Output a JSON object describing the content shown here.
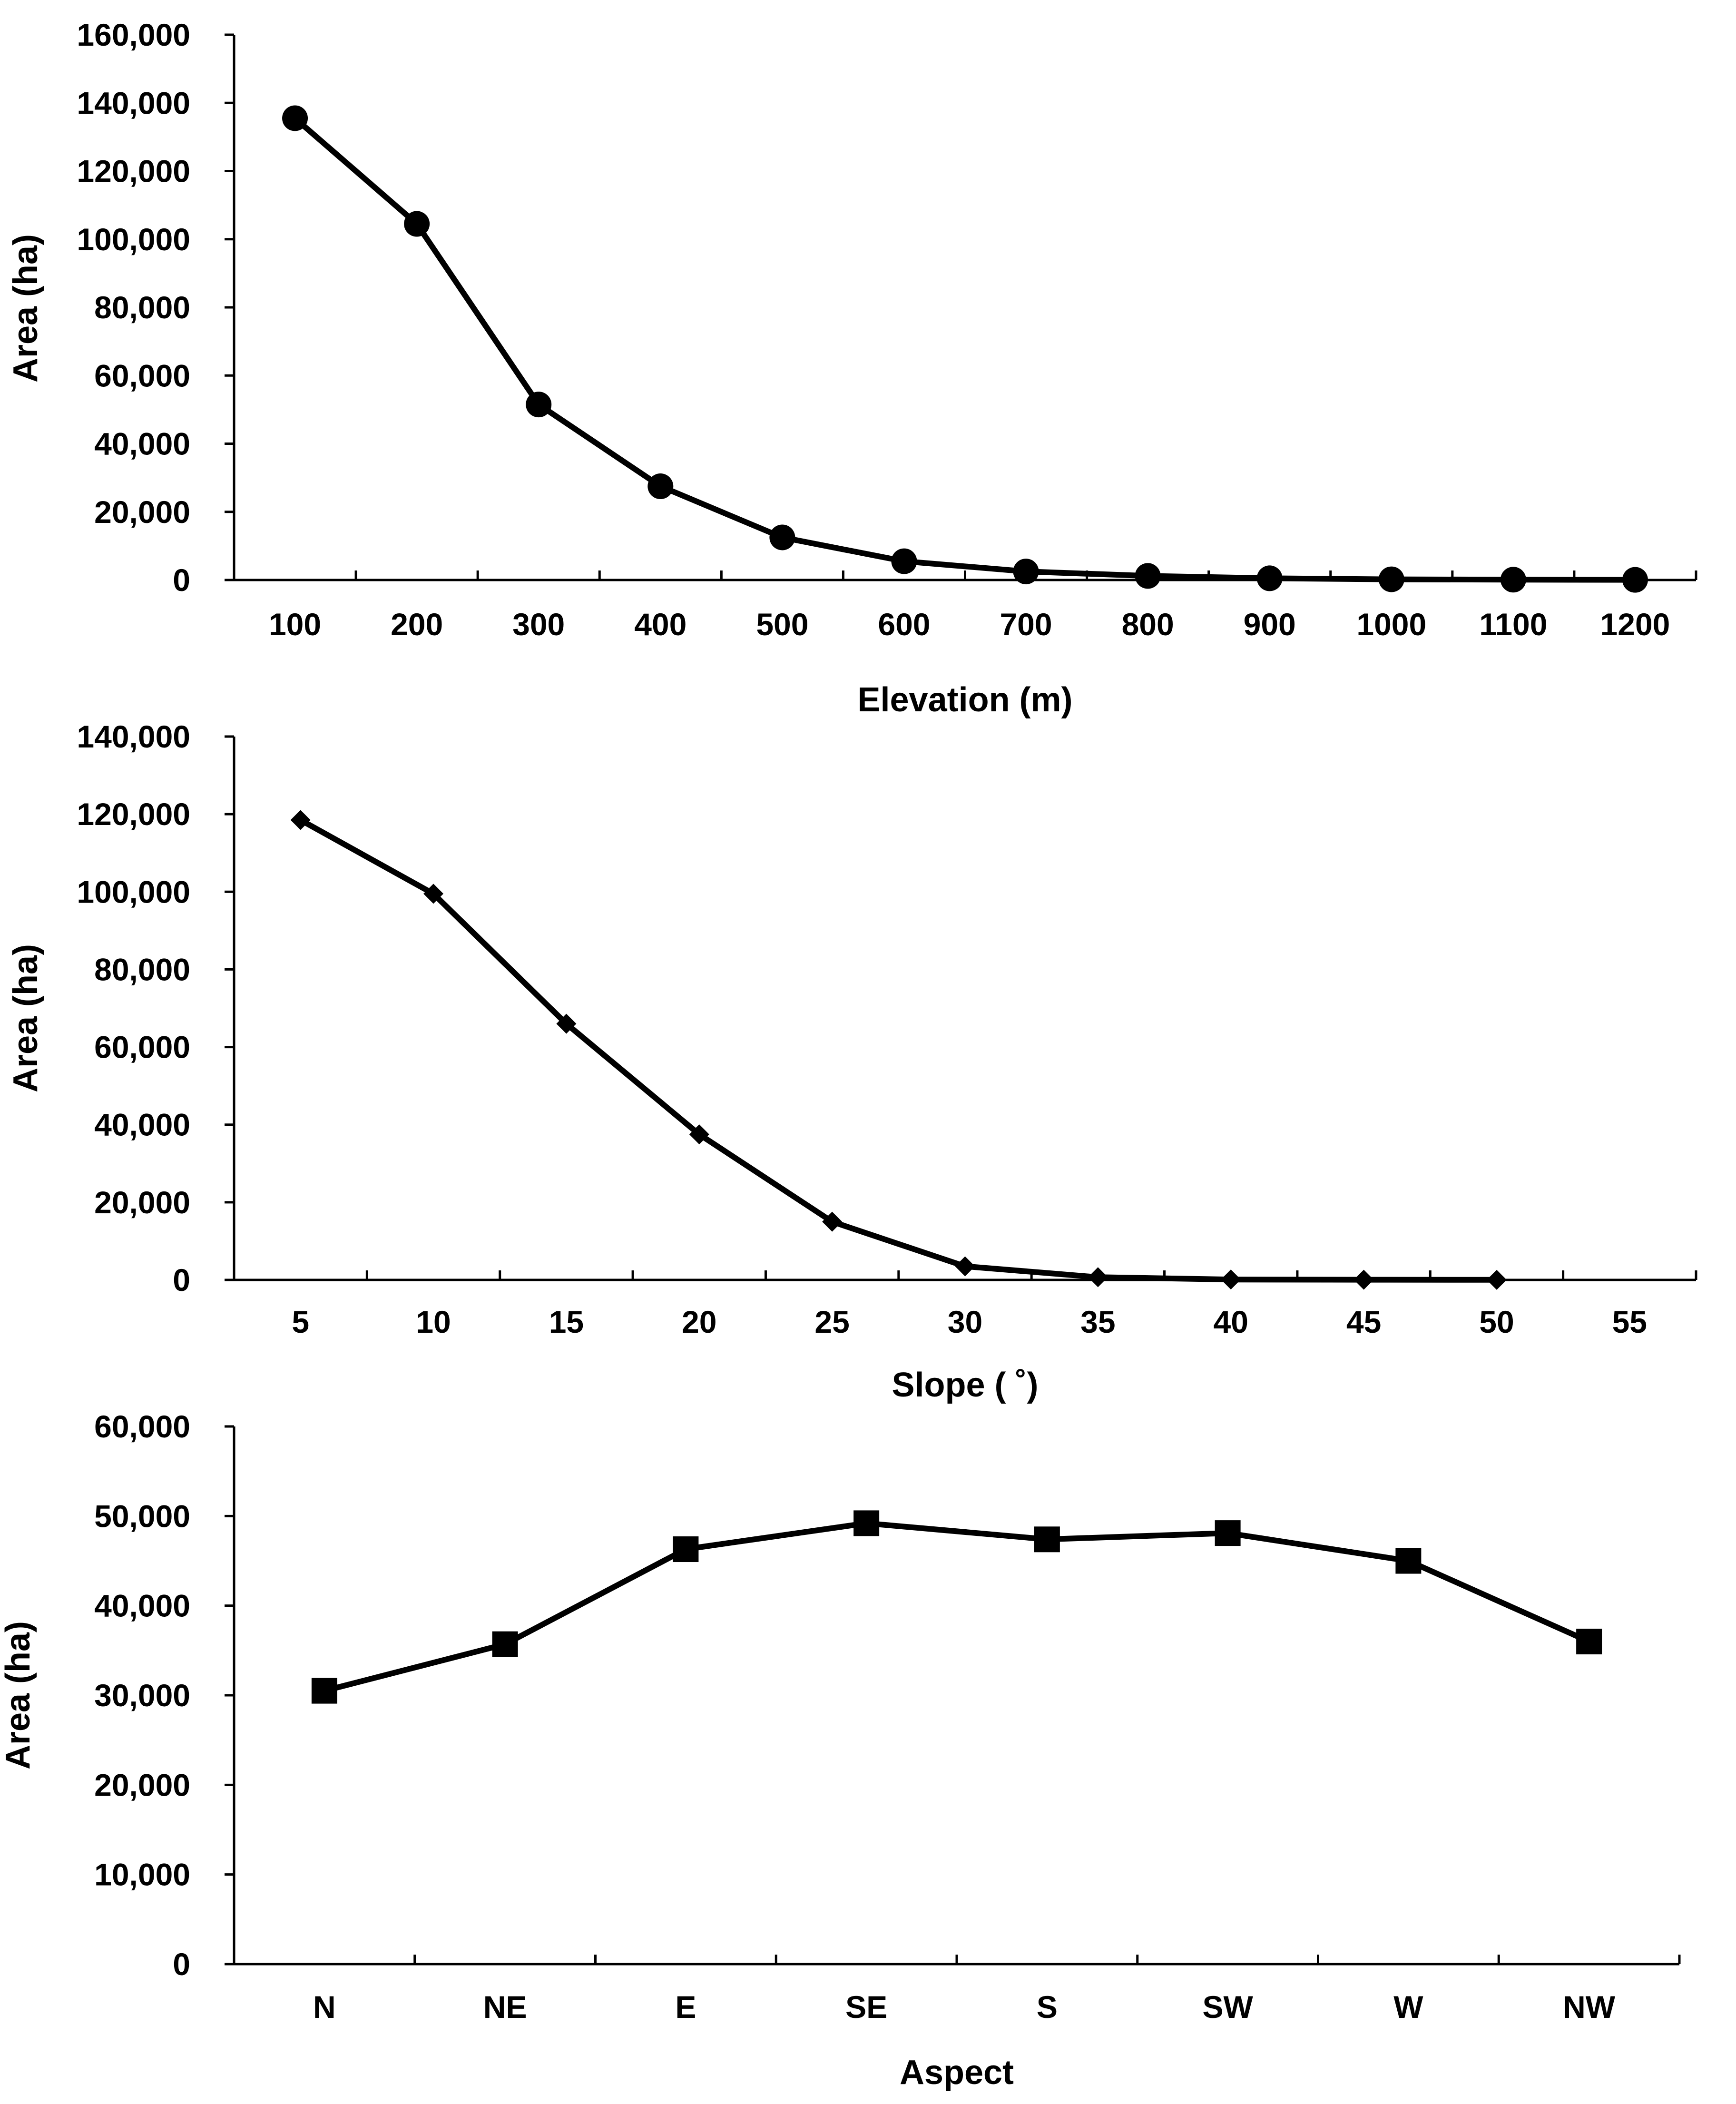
{
  "colors": {
    "line": "#000000",
    "background": "#ffffff"
  },
  "chart_data": [
    {
      "type": "line",
      "marker": "circle",
      "title": "",
      "xlabel": "Elevation (m)",
      "ylabel": "Area (ha)",
      "categories": [
        "100",
        "200",
        "300",
        "400",
        "500",
        "600",
        "700",
        "800",
        "900",
        "1000",
        "1100",
        "1200"
      ],
      "series": [
        {
          "name": "Area",
          "values": [
            135500,
            104500,
            51500,
            27500,
            12500,
            5500,
            2500,
            1200,
            500,
            200,
            100,
            50
          ]
        }
      ],
      "yticks": [
        "0",
        "20,000",
        "40,000",
        "60,000",
        "80,000",
        "100,000",
        "120,000",
        "140,000",
        "160,000"
      ],
      "ylim": [
        0,
        160000
      ],
      "grid": false,
      "legend": "none"
    },
    {
      "type": "line",
      "marker": "diamond",
      "title": "",
      "xlabel": "Slope ( ˚)",
      "ylabel": "Area (ha)",
      "categories": [
        "5",
        "10",
        "15",
        "20",
        "25",
        "30",
        "35",
        "40",
        "45",
        "50",
        "55"
      ],
      "series": [
        {
          "name": "Area",
          "values": [
            118500,
            99500,
            66000,
            37500,
            15000,
            3500,
            700,
            100,
            50,
            20,
            null
          ]
        }
      ],
      "yticks": [
        "0",
        "20,000",
        "40,000",
        "60,000",
        "80,000",
        "100,000",
        "120,000",
        "140,000"
      ],
      "ylim": [
        0,
        140000
      ],
      "grid": false,
      "legend": "none"
    },
    {
      "type": "line",
      "marker": "square",
      "title": "",
      "xlabel": "Aspect",
      "ylabel": "Area (ha)",
      "categories": [
        "N",
        "NE",
        "E",
        "SE",
        "S",
        "SW",
        "W",
        "NW"
      ],
      "series": [
        {
          "name": "Area",
          "values": [
            30500,
            35700,
            46300,
            49200,
            47400,
            48100,
            45000,
            36000
          ]
        }
      ],
      "yticks": [
        "0",
        "10,000",
        "20,000",
        "30,000",
        "40,000",
        "50,000",
        "60,000"
      ],
      "ylim": [
        0,
        60000
      ],
      "grid": false,
      "legend": "none"
    }
  ]
}
